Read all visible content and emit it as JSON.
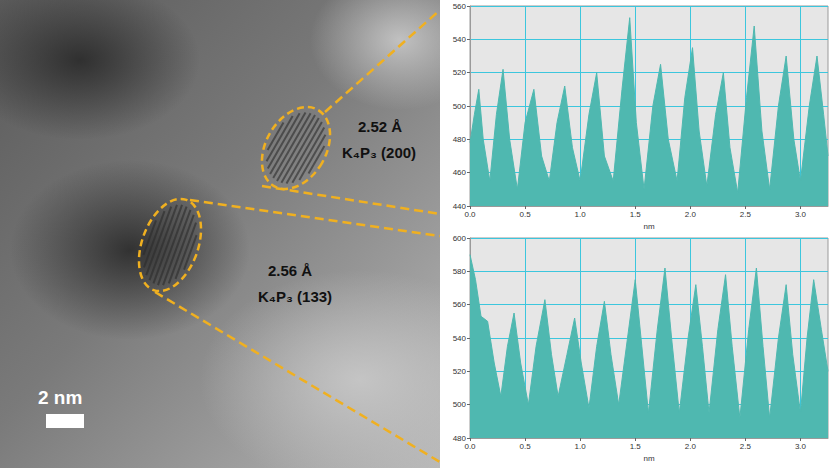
{
  "micrograph": {
    "annotations": [
      {
        "spacing": "2.52 Å",
        "phase": "K₄P₃ (200)"
      },
      {
        "spacing": "2.56 Å",
        "phase": "K₄P₃ (133)"
      }
    ],
    "scale_bar": "2 nm"
  },
  "chart_data": [
    {
      "type": "area",
      "color": "#4fb8b0",
      "grid": true,
      "x_label": "nm",
      "xlim": [
        0,
        3.25
      ],
      "xticks": [
        {
          "value": 0,
          "label": "0.0"
        },
        0.5,
        {
          "value": 1,
          "label": "1.0"
        },
        1.5,
        {
          "value": 2,
          "label": "2.0"
        },
        2.5,
        {
          "value": 3,
          "label": "3.0"
        }
      ],
      "ylim": [
        440,
        560
      ],
      "yticks": [
        440,
        460,
        480,
        500,
        520,
        540,
        560
      ],
      "x": [
        0.0,
        0.04,
        0.08,
        0.12,
        0.18,
        0.24,
        0.3,
        0.36,
        0.43,
        0.5,
        0.58,
        0.65,
        0.72,
        0.79,
        0.86,
        0.93,
        1.0,
        1.08,
        1.15,
        1.22,
        1.3,
        1.38,
        1.45,
        1.51,
        1.58,
        1.66,
        1.73,
        1.8,
        1.88,
        1.95,
        2.02,
        2.08,
        2.15,
        2.23,
        2.3,
        2.36,
        2.43,
        2.51,
        2.58,
        2.65,
        2.72,
        2.8,
        2.87,
        2.94,
        3.0,
        3.08,
        3.15,
        3.21,
        3.25
      ],
      "values": [
        478,
        495,
        510,
        480,
        455,
        495,
        522,
        480,
        450,
        490,
        510,
        470,
        455,
        490,
        512,
        475,
        455,
        495,
        520,
        470,
        455,
        510,
        553,
        490,
        450,
        500,
        525,
        480,
        455,
        505,
        535,
        485,
        452,
        495,
        520,
        475,
        448,
        505,
        548,
        485,
        450,
        500,
        530,
        480,
        455,
        500,
        530,
        495,
        470
      ]
    },
    {
      "type": "area",
      "color": "#4fb8b0",
      "grid": true,
      "x_label": "nm",
      "xlim": [
        0,
        3.25
      ],
      "xticks": [
        {
          "value": 0,
          "label": "0.0"
        },
        0.5,
        {
          "value": 1,
          "label": "1.0"
        },
        1.5,
        {
          "value": 2,
          "label": "2.0"
        },
        2.5,
        {
          "value": 3,
          "label": "3.0"
        }
      ],
      "ylim": [
        480,
        600
      ],
      "yticks": [
        480,
        500,
        520,
        540,
        560,
        580,
        600
      ],
      "x": [
        0.0,
        0.05,
        0.1,
        0.16,
        0.22,
        0.28,
        0.34,
        0.4,
        0.46,
        0.53,
        0.6,
        0.68,
        0.74,
        0.8,
        0.88,
        0.95,
        1.01,
        1.08,
        1.15,
        1.22,
        1.28,
        1.35,
        1.43,
        1.5,
        1.56,
        1.62,
        1.7,
        1.77,
        1.83,
        1.9,
        1.98,
        2.05,
        2.11,
        2.17,
        2.25,
        2.32,
        2.38,
        2.45,
        2.53,
        2.6,
        2.66,
        2.72,
        2.8,
        2.87,
        2.93,
        3.0,
        3.06,
        3.12,
        3.19,
        3.25
      ],
      "values": [
        590,
        575,
        553,
        550,
        525,
        505,
        535,
        555,
        525,
        500,
        535,
        563,
        530,
        505,
        530,
        552,
        525,
        498,
        535,
        562,
        530,
        500,
        540,
        575,
        535,
        495,
        545,
        582,
        540,
        495,
        540,
        572,
        535,
        495,
        545,
        578,
        535,
        492,
        545,
        582,
        535,
        492,
        540,
        572,
        530,
        495,
        540,
        575,
        545,
        520
      ]
    }
  ]
}
